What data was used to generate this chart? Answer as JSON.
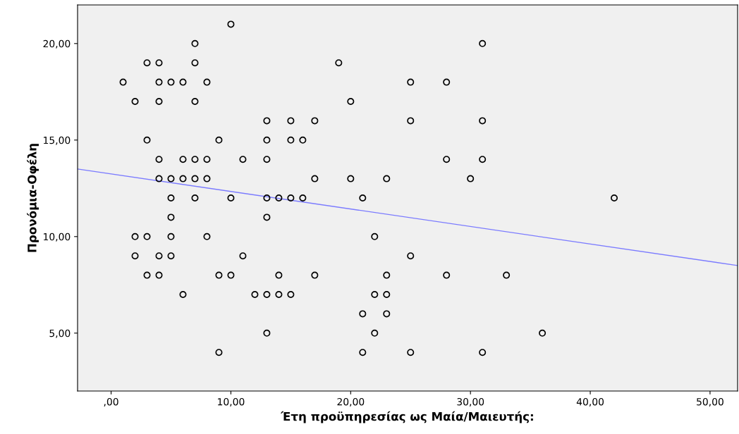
{
  "chart_data": {
    "type": "scatter",
    "xlabel": "Έτη προϋπηρεσίας ως Μαία/Μαιευτής:",
    "ylabel": "Προνόμια-Οφέλη",
    "xlim": [
      -2.8,
      52.3
    ],
    "ylim": [
      2.0,
      22.0
    ],
    "xticks": [
      {
        "value": 0,
        "label": ",00"
      },
      {
        "value": 10,
        "label": "10,00"
      },
      {
        "value": 20,
        "label": "20,00"
      },
      {
        "value": 30,
        "label": "30,00"
      },
      {
        "value": 40,
        "label": "40,00"
      },
      {
        "value": 50,
        "label": "50,00"
      }
    ],
    "yticks": [
      {
        "value": 5,
        "label": "5,00"
      },
      {
        "value": 10,
        "label": "10,00"
      },
      {
        "value": 15,
        "label": "15,00"
      },
      {
        "value": 20,
        "label": "20,00"
      }
    ],
    "grid": false,
    "series": [
      {
        "marker": "circle",
        "color": "#000000",
        "x": [
          10,
          7,
          31,
          3,
          4,
          7,
          19,
          1,
          4,
          5,
          6,
          8,
          25,
          28,
          2,
          4,
          7,
          20,
          13,
          15,
          17,
          25,
          31,
          3,
          9,
          13,
          15,
          16,
          4,
          6,
          7,
          8,
          11,
          13,
          28,
          31,
          4,
          5,
          6,
          7,
          8,
          17,
          20,
          23,
          30,
          5,
          7,
          10,
          13,
          14,
          15,
          16,
          21,
          42,
          5,
          13,
          2,
          3,
          5,
          8,
          22,
          2,
          4,
          5,
          11,
          25,
          3,
          4,
          9,
          10,
          14,
          17,
          23,
          28,
          33,
          6,
          12,
          13,
          14,
          15,
          22,
          23,
          21,
          23,
          13,
          22,
          36,
          9,
          21,
          25,
          31
        ],
        "values": [
          21,
          20,
          20,
          19,
          19,
          19,
          19,
          18,
          18,
          18,
          18,
          18,
          18,
          18,
          17,
          17,
          17,
          17,
          16,
          16,
          16,
          16,
          16,
          15,
          15,
          15,
          15,
          15,
          14,
          14,
          14,
          14,
          14,
          14,
          14,
          14,
          13,
          13,
          13,
          13,
          13,
          13,
          13,
          13,
          13,
          12,
          12,
          12,
          12,
          12,
          12,
          12,
          12,
          12,
          11,
          11,
          10,
          10,
          10,
          10,
          10,
          9,
          9,
          9,
          9,
          9,
          8,
          8,
          8,
          8,
          8,
          8,
          8,
          8,
          8,
          7,
          7,
          7,
          7,
          7,
          7,
          7,
          6,
          6,
          5,
          5,
          5,
          4,
          4,
          4,
          4
        ]
      },
      {
        "type": "line",
        "color": "#7b7bff",
        "x": [
          -2.8,
          52.3
        ],
        "values": [
          13.5,
          8.5
        ]
      }
    ]
  }
}
